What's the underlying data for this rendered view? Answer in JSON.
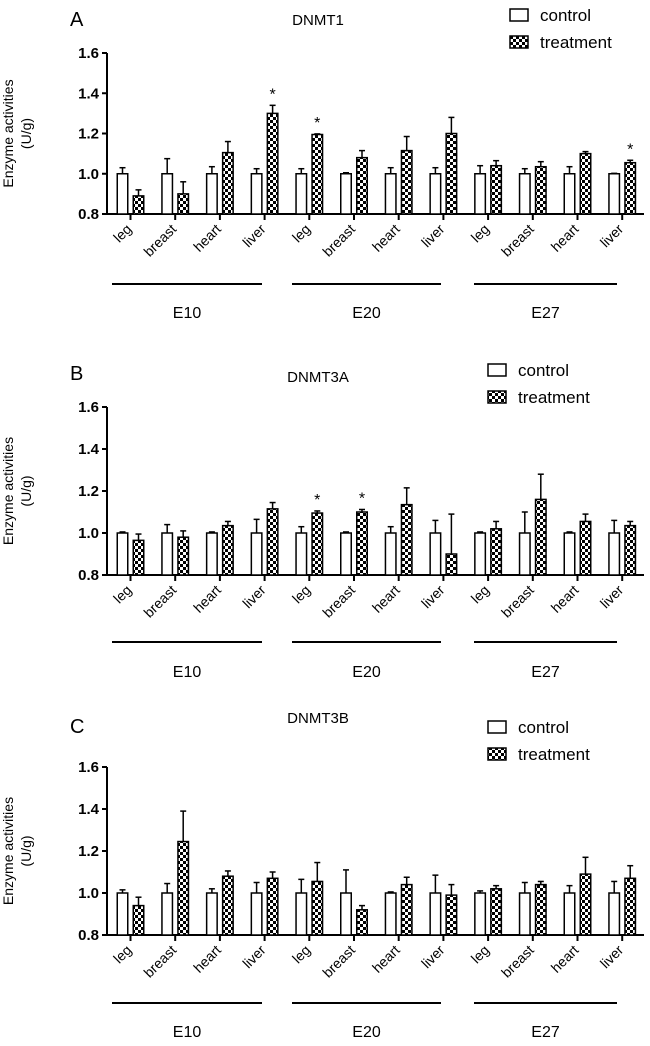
{
  "chart_data": [
    {
      "type": "bar",
      "panel_label": "A",
      "title": "DNMT1",
      "ylabel": [
        "Enzyme activities",
        "(U/g)"
      ],
      "ylim": [
        0.8,
        1.6
      ],
      "yticks": [
        "0.8",
        "1.0",
        "1.2",
        "1.4",
        "1.6"
      ],
      "groups": [
        "E10",
        "E20",
        "E27"
      ],
      "tissues": [
        "leg",
        "breast",
        "heart",
        "liver"
      ],
      "legend": [
        "control",
        "treatment"
      ],
      "legend_position": "top-right",
      "series": [
        {
          "name": "control",
          "values": [
            1.0,
            1.0,
            1.0,
            1.0,
            1.0,
            1.0,
            1.0,
            1.0,
            1.0,
            1.0,
            1.0,
            1.0
          ],
          "errors": [
            0.03,
            0.075,
            0.035,
            0.025,
            0.025,
            0.005,
            0.03,
            0.03,
            0.04,
            0.025,
            0.035,
            0.002
          ]
        },
        {
          "name": "treatment",
          "values": [
            0.89,
            0.9,
            1.105,
            1.3,
            1.195,
            1.08,
            1.115,
            1.2,
            1.04,
            1.035,
            1.1,
            1.055
          ],
          "errors": [
            0.03,
            0.06,
            0.055,
            0.04,
            0.003,
            0.035,
            0.07,
            0.08,
            0.025,
            0.025,
            0.01,
            0.012
          ]
        }
      ],
      "significant": [
        "*",
        "",
        "",
        "",
        "",
        "",
        "",
        "",
        "",
        "",
        "",
        ""
      ],
      "significant_treatment": [
        "",
        "",
        "",
        "*",
        "*",
        "",
        "",
        "",
        "",
        "",
        "",
        "*"
      ]
    },
    {
      "type": "bar",
      "panel_label": "B",
      "title": "DNMT3A",
      "ylabel": [
        "Enzyme activities",
        "(U/g)"
      ],
      "ylim": [
        0.8,
        1.6
      ],
      "yticks": [
        "0.8",
        "1.0",
        "1.2",
        "1.4",
        "1.6"
      ],
      "groups": [
        "E10",
        "E20",
        "E27"
      ],
      "tissues": [
        "leg",
        "breast",
        "heart",
        "liver"
      ],
      "legend": [
        "control",
        "treatment"
      ],
      "legend_position": "top-right",
      "series": [
        {
          "name": "control",
          "values": [
            1.0,
            1.0,
            1.0,
            1.0,
            1.0,
            1.0,
            1.0,
            1.0,
            1.0,
            1.0,
            1.0,
            1.0
          ],
          "errors": [
            0.005,
            0.04,
            0.005,
            0.065,
            0.03,
            0.005,
            0.03,
            0.06,
            0.005,
            0.1,
            0.005,
            0.06
          ]
        },
        {
          "name": "treatment",
          "values": [
            0.965,
            0.98,
            1.035,
            1.115,
            1.095,
            1.1,
            1.135,
            0.9,
            1.02,
            1.16,
            1.055,
            1.035
          ],
          "errors": [
            0.03,
            0.03,
            0.02,
            0.03,
            0.01,
            0.012,
            0.08,
            0.19,
            0.035,
            0.12,
            0.035,
            0.02
          ]
        }
      ],
      "significant_treatment": [
        "",
        "",
        "",
        "",
        "*",
        "*",
        "",
        "",
        "",
        "",
        "",
        ""
      ]
    },
    {
      "type": "bar",
      "panel_label": "C",
      "title": "DNMT3B",
      "ylabel": [
        "Enzyme activities",
        "(U/g)"
      ],
      "ylim": [
        0.8,
        1.6
      ],
      "yticks": [
        "0.8",
        "1.0",
        "1.2",
        "1.4",
        "1.6"
      ],
      "groups": [
        "E10",
        "E20",
        "E27"
      ],
      "tissues": [
        "leg",
        "breast",
        "heart",
        "liver"
      ],
      "legend": [
        "control",
        "treatment"
      ],
      "legend_position": "top-right",
      "series": [
        {
          "name": "control",
          "values": [
            1.0,
            1.0,
            1.0,
            1.0,
            1.0,
            1.0,
            1.0,
            1.0,
            1.0,
            1.0,
            1.0,
            1.0
          ],
          "errors": [
            0.015,
            0.045,
            0.02,
            0.05,
            0.065,
            0.11,
            0.005,
            0.085,
            0.01,
            0.05,
            0.035,
            0.055
          ]
        },
        {
          "name": "treatment",
          "values": [
            0.94,
            1.245,
            1.08,
            1.07,
            1.055,
            0.92,
            1.04,
            0.99,
            1.02,
            1.04,
            1.09,
            1.07
          ],
          "errors": [
            0.04,
            0.145,
            0.025,
            0.03,
            0.09,
            0.02,
            0.035,
            0.05,
            0.015,
            0.015,
            0.08,
            0.06
          ]
        }
      ],
      "significant_treatment": [
        "",
        "",
        "",
        "",
        "",
        "",
        "",
        "",
        "",
        "",
        "",
        ""
      ]
    }
  ],
  "colors": {
    "ink": "#000000",
    "background": "#ffffff"
  }
}
